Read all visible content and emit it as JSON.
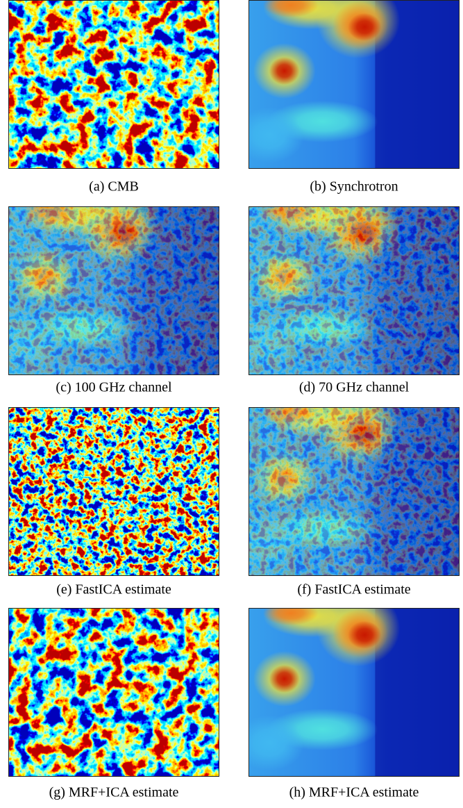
{
  "panels": [
    {
      "caption": "(a) CMB"
    },
    {
      "caption": "(b) Synchrotron"
    },
    {
      "caption": "(c) 100 GHz channel"
    },
    {
      "caption": "(d) 70 GHz channel"
    },
    {
      "caption": "(e) FastICA estimate"
    },
    {
      "caption": "(f) FastICA estimate"
    },
    {
      "caption": "(g) MRF+ICA estimate"
    },
    {
      "caption": "(h) MRF+ICA estimate"
    }
  ]
}
